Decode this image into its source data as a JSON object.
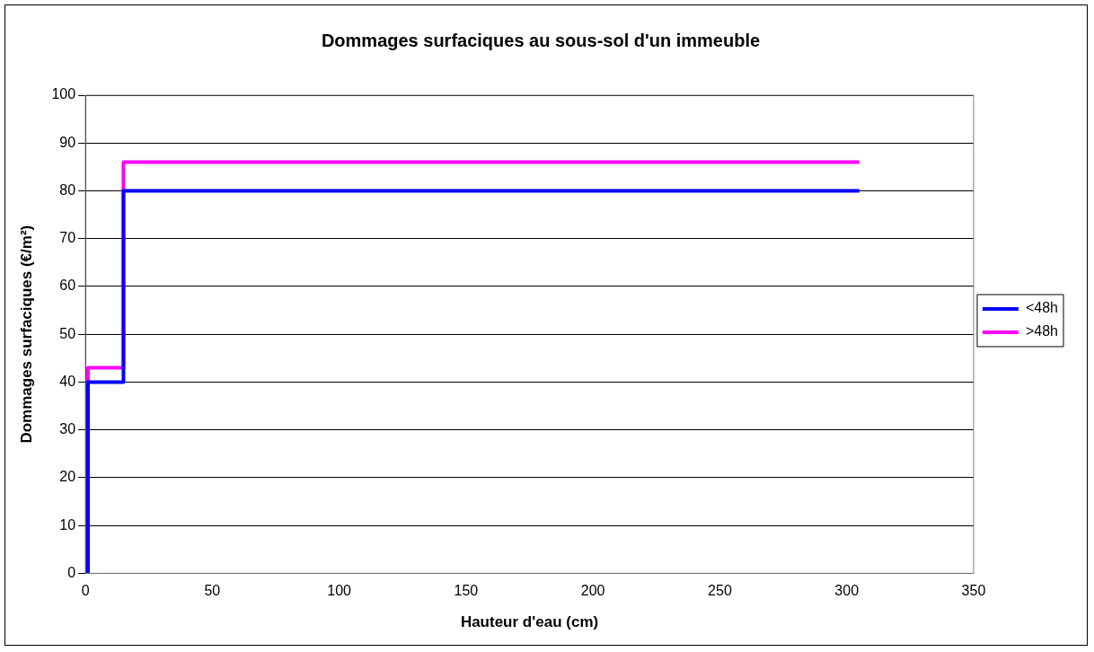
{
  "chart_data": {
    "type": "line",
    "title": "Dommages surfaciques au sous-sol d'un immeuble",
    "xlabel": "Hauteur d'eau (cm)",
    "ylabel": "Dommages surfaciques (€/m²)",
    "series": [
      {
        "name": "<48h",
        "color": "#0000ff",
        "x": [
          1,
          1,
          15,
          15,
          305
        ],
        "values": [
          0,
          40,
          40,
          80,
          80
        ]
      },
      {
        "name": ">48h",
        "color": "#ff00ff",
        "x": [
          1,
          1,
          15,
          15,
          305
        ],
        "values": [
          0,
          43,
          43,
          86,
          86
        ]
      }
    ],
    "xlim": [
      0,
      350
    ],
    "xticks": [
      0,
      50,
      100,
      150,
      200,
      250,
      300,
      350
    ],
    "ylim": [
      0,
      100
    ],
    "yticks": [
      0,
      10,
      20,
      30,
      40,
      50,
      60,
      70,
      80,
      90,
      100
    ],
    "grid": "y",
    "legend": "right",
    "marker": "none",
    "line_style": "solid"
  }
}
